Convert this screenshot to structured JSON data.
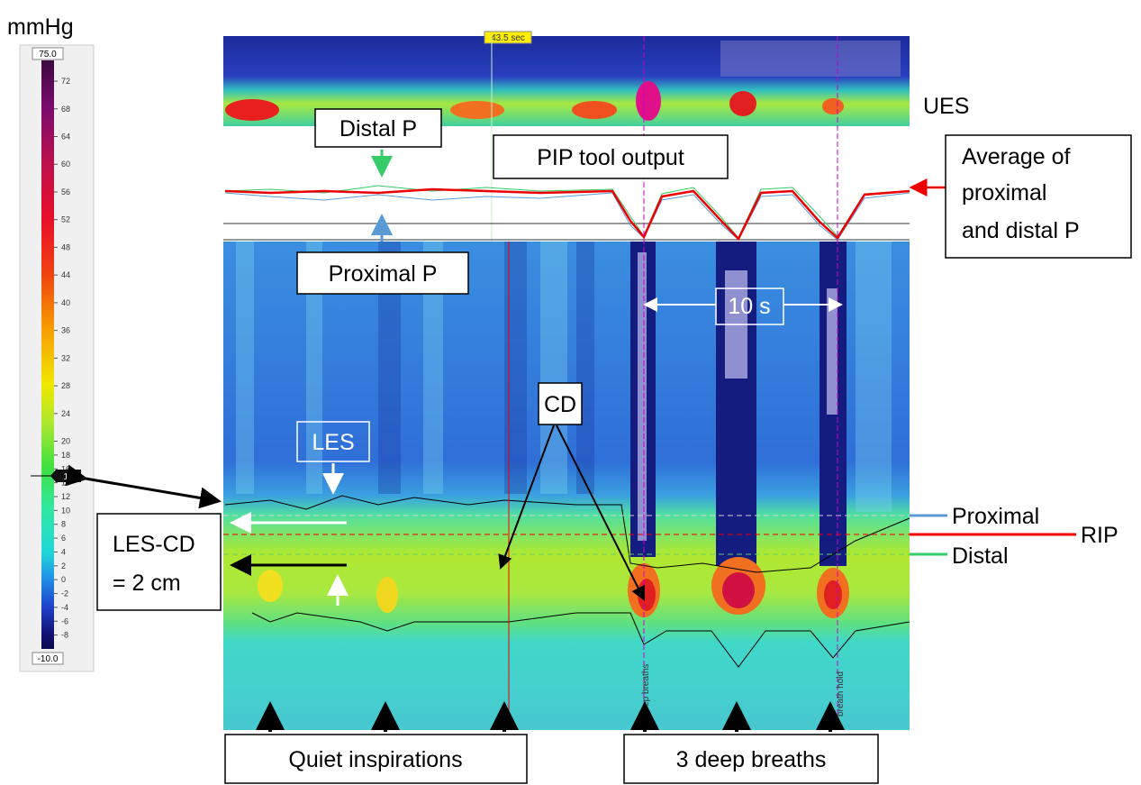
{
  "colorbar": {
    "unit": "mmHg",
    "max": {
      "value": 75,
      "label": "75.0"
    },
    "min": {
      "value": -10,
      "label": "-10.0"
    },
    "ticks": [
      72,
      68,
      64,
      60,
      56,
      52,
      48,
      44,
      40,
      36,
      32,
      28,
      24,
      20,
      18,
      16,
      14,
      12,
      10,
      8,
      6,
      4,
      2,
      0,
      -2,
      -4,
      -6,
      -8
    ],
    "marker": 15
  },
  "timestamp": "43.5 sec",
  "annotations": {
    "ues": "UES",
    "distal_p": "Distal P",
    "pip_tool": "PIP tool output",
    "average": [
      "Average of",
      "proximal",
      "and distal P"
    ],
    "proximal_p": "Proximal P",
    "ten_s": "10 s",
    "cd": "CD",
    "les": "LES",
    "les_cd": [
      "LES-CD",
      "= 2 cm"
    ],
    "proximal": "Proximal",
    "distal": "Distal",
    "rip": "RIP",
    "quiet": "Quiet inspirations",
    "deep": "3 deep breaths",
    "deep_breaths_tag": "deep breaths",
    "breath_hold_tag": "breath hold"
  }
}
